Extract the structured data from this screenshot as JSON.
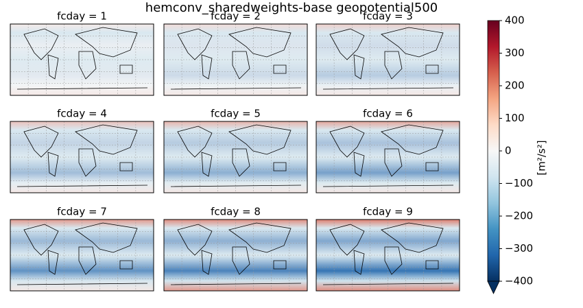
{
  "chart_data": {
    "type": "heatmap-grid",
    "title": "hemconv_sharedweights-base geopotential500",
    "panels": [
      "fcday = 1",
      "fcday = 2",
      "fcday = 3",
      "fcday = 4",
      "fcday = 5",
      "fcday = 6",
      "fcday = 7",
      "fcday = 8",
      "fcday = 9"
    ],
    "colorbar": {
      "label": "[m²/s²]",
      "clim": [
        -400,
        400
      ],
      "ticks": [
        400,
        300,
        200,
        100,
        0,
        {
          "value": -100,
          "label": "−100"
        },
        {
          "value": -200,
          "label": "−200"
        },
        {
          "value": -300,
          "label": "−300"
        },
        {
          "value": -400,
          "label": "−400"
        }
      ],
      "colors": [
        "#67001f",
        "#b2182b",
        "#d6604d",
        "#f4a582",
        "#fddbc7",
        "#f7f7f7",
        "#d1e5f0",
        "#92c5de",
        "#4393c3",
        "#2166ac",
        "#053061"
      ]
    }
  }
}
